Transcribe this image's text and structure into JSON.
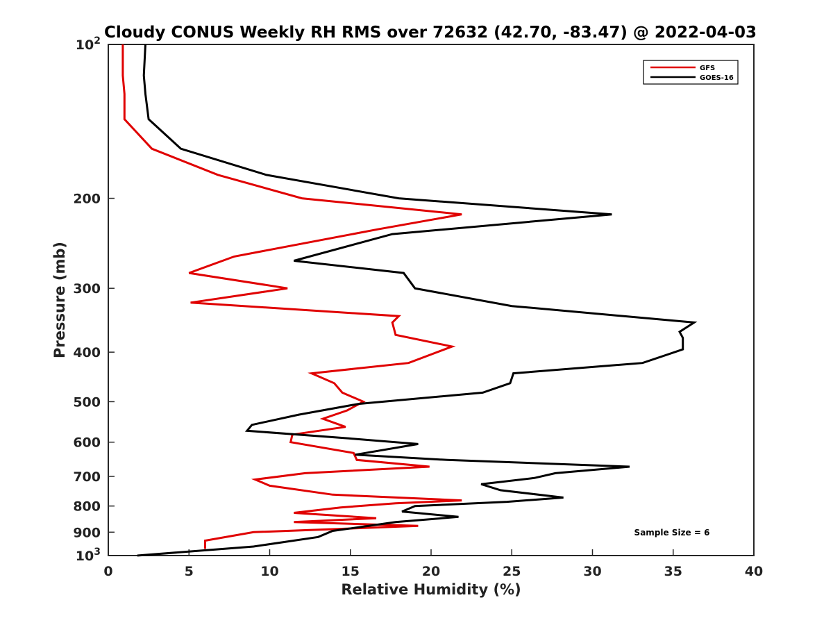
{
  "chart_data": {
    "type": "line",
    "title": "Cloudy CONUS Weekly RH RMS over 72632 (42.70, -83.47) @ 2022-04-03",
    "xlabel": "Relative Humidity (%)",
    "ylabel": "Pressure (mb)",
    "xlim": [
      0,
      40
    ],
    "ylim": [
      100,
      1000
    ],
    "y_scale": "log",
    "y_reversed": true,
    "grid": false,
    "legend_position": "top-right",
    "x_ticks": [
      "0",
      "5",
      "10",
      "15",
      "20",
      "25",
      "30",
      "35",
      "40"
    ],
    "y_ticks": [
      {
        "value": 100,
        "label": "10",
        "sup": "2"
      },
      {
        "value": 200,
        "label": "200",
        "sup": ""
      },
      {
        "value": 300,
        "label": "300",
        "sup": ""
      },
      {
        "value": 400,
        "label": "400",
        "sup": ""
      },
      {
        "value": 500,
        "label": "500",
        "sup": ""
      },
      {
        "value": 600,
        "label": "600",
        "sup": ""
      },
      {
        "value": 700,
        "label": "700",
        "sup": ""
      },
      {
        "value": 800,
        "label": "800",
        "sup": ""
      },
      {
        "value": 900,
        "label": "900",
        "sup": ""
      },
      {
        "value": 1000,
        "label": "10",
        "sup": "3"
      }
    ],
    "series": [
      {
        "name": "GFS",
        "color": "#e00000",
        "points": [
          [
            0.9,
            100
          ],
          [
            0.9,
            115
          ],
          [
            1.0,
            125
          ],
          [
            1.0,
            140
          ],
          [
            2.7,
            160
          ],
          [
            6.8,
            180
          ],
          [
            12.0,
            200
          ],
          [
            21.9,
            215
          ],
          [
            16.7,
            230
          ],
          [
            7.8,
            260
          ],
          [
            5.0,
            280
          ],
          [
            11.1,
            300
          ],
          [
            5.1,
            320
          ],
          [
            18.0,
            340
          ],
          [
            17.6,
            350
          ],
          [
            17.8,
            370
          ],
          [
            21.3,
            390
          ],
          [
            18.6,
            420
          ],
          [
            12.6,
            440
          ],
          [
            14.0,
            460
          ],
          [
            14.5,
            480
          ],
          [
            15.8,
            500
          ],
          [
            14.8,
            520
          ],
          [
            13.3,
            540
          ],
          [
            14.7,
            560
          ],
          [
            11.4,
            580
          ],
          [
            11.3,
            600
          ],
          [
            15.2,
            630
          ],
          [
            15.4,
            650
          ],
          [
            19.9,
            670
          ],
          [
            12.2,
            690
          ],
          [
            9.1,
            710
          ],
          [
            10.0,
            730
          ],
          [
            13.9,
            760
          ],
          [
            21.9,
            780
          ],
          [
            17.8,
            790
          ],
          [
            14.4,
            805
          ],
          [
            11.5,
            825
          ],
          [
            16.6,
            845
          ],
          [
            11.5,
            860
          ],
          [
            19.2,
            875
          ],
          [
            9.0,
            900
          ],
          [
            6.0,
            935
          ],
          [
            6.0,
            970
          ]
        ]
      },
      {
        "name": "GOES-16",
        "color": "#000000",
        "points": [
          [
            2.3,
            100
          ],
          [
            2.2,
            115
          ],
          [
            2.3,
            125
          ],
          [
            2.5,
            140
          ],
          [
            4.5,
            160
          ],
          [
            9.8,
            180
          ],
          [
            18.0,
            200
          ],
          [
            31.2,
            215
          ],
          [
            17.6,
            235
          ],
          [
            11.5,
            265
          ],
          [
            18.3,
            280
          ],
          [
            19.0,
            300
          ],
          [
            25.0,
            325
          ],
          [
            36.3,
            350
          ],
          [
            35.4,
            365
          ],
          [
            35.6,
            375
          ],
          [
            35.6,
            395
          ],
          [
            33.1,
            420
          ],
          [
            25.1,
            440
          ],
          [
            24.9,
            460
          ],
          [
            23.2,
            480
          ],
          [
            15.5,
            505
          ],
          [
            11.8,
            530
          ],
          [
            8.9,
            555
          ],
          [
            8.6,
            570
          ],
          [
            14.9,
            590
          ],
          [
            19.2,
            605
          ],
          [
            15.3,
            635
          ],
          [
            21.0,
            650
          ],
          [
            32.3,
            670
          ],
          [
            27.7,
            690
          ],
          [
            26.4,
            705
          ],
          [
            23.1,
            725
          ],
          [
            24.3,
            745
          ],
          [
            28.2,
            770
          ],
          [
            24.7,
            785
          ],
          [
            19.0,
            800
          ],
          [
            18.2,
            820
          ],
          [
            21.7,
            840
          ],
          [
            17.8,
            860
          ],
          [
            13.9,
            895
          ],
          [
            13.0,
            920
          ],
          [
            9.0,
            960
          ],
          [
            1.8,
            1000
          ]
        ]
      }
    ],
    "annotation": "Sample Size = 6"
  }
}
